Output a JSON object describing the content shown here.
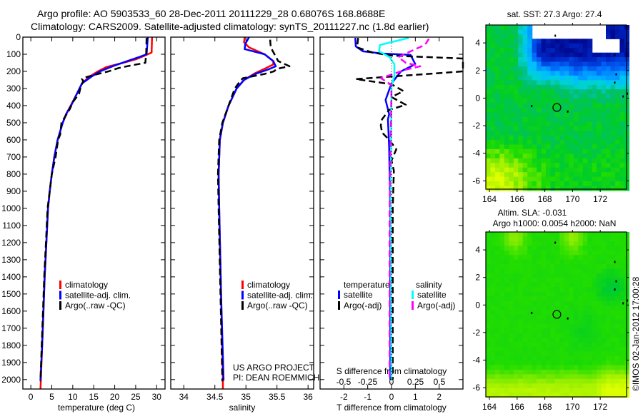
{
  "header": {
    "title_line1": "Argo profile: AO 5903533_60 28-Dec-2011 20111229_28 0.68076S 168.8688E",
    "title_line2": "Climatology: CARS2009. Satellite-adjusted climatology: synTS_20111227.nc (1.8d earlier)"
  },
  "credits": {
    "project": "US ARGO PROJECT",
    "pi": "PI: DEAN ROEMMICH",
    "stamp": "©IMOS 02-Jan-2012 17:00:28"
  },
  "colors": {
    "climatology": "#ff0000",
    "satellite": "#0000ff",
    "argo": "#000000",
    "sal_satellite": "#00ffff",
    "sal_argo": "#ff00ff"
  },
  "chart_data": [
    {
      "type": "line",
      "id": "temperature",
      "xlabel": "temperature (deg C)",
      "ylabel": "",
      "xlim": [
        -1.9,
        32
      ],
      "ylim": [
        2055,
        0
      ],
      "xticks": [
        "0",
        "5",
        "10",
        "15",
        "20",
        "25",
        "30"
      ],
      "yticks": [
        "0",
        "100",
        "200",
        "300",
        "400",
        "500",
        "600",
        "700",
        "800",
        "900",
        "1000",
        "1100",
        "1200",
        "1300",
        "1400",
        "1500",
        "1600",
        "1700",
        "1800",
        "1900",
        "2000"
      ],
      "legend": [
        "climatology",
        "satellite-adj. clim.",
        "Argo(..raw -QC)"
      ],
      "series": [
        {
          "name": "climatology",
          "color": "#ff0000",
          "points": [
            [
              0,
              28.9
            ],
            [
              90,
              28.8
            ],
            [
              110,
              27
            ],
            [
              130,
              25
            ],
            [
              150,
              22
            ],
            [
              175,
              18
            ],
            [
              200,
              16
            ],
            [
              230,
              14
            ],
            [
              270,
              12.2
            ],
            [
              330,
              11
            ],
            [
              400,
              9.5
            ],
            [
              450,
              8.4
            ],
            [
              500,
              7.6
            ],
            [
              600,
              6.4
            ],
            [
              700,
              5.6
            ],
            [
              800,
              5
            ],
            [
              900,
              4.5
            ],
            [
              1000,
              4.1
            ],
            [
              1200,
              3.7
            ],
            [
              1400,
              3.3
            ],
            [
              1600,
              3
            ],
            [
              1800,
              2.7
            ],
            [
              2000,
              2.4
            ],
            [
              2055,
              2.3
            ]
          ]
        },
        {
          "name": "satellite-adj. clim.",
          "color": "#0000ff",
          "points": [
            [
              0,
              27.9
            ],
            [
              100,
              27.6
            ],
            [
              115,
              26
            ],
            [
              140,
              23
            ],
            [
              170,
              19.5
            ],
            [
              200,
              16.5
            ],
            [
              230,
              14.5
            ],
            [
              270,
              12.2
            ],
            [
              330,
              11
            ],
            [
              400,
              9.6
            ],
            [
              450,
              8.4
            ],
            [
              500,
              7.6
            ],
            [
              600,
              6.4
            ],
            [
              700,
              5.6
            ],
            [
              800,
              5
            ],
            [
              900,
              4.5
            ],
            [
              1000,
              4.1
            ],
            [
              1200,
              3.7
            ],
            [
              1400,
              3.3
            ],
            [
              1600,
              3
            ],
            [
              1800,
              2.7
            ],
            [
              2000,
              2.3
            ],
            [
              2005,
              2.2
            ]
          ]
        },
        {
          "name": "Argo(..raw -QC)",
          "color": "#000000",
          "points": [
            [
              5,
              27.6
            ],
            [
              100,
              27.5
            ],
            [
              150,
              27.3
            ],
            [
              165,
              24
            ],
            [
              180,
              21
            ],
            [
              200,
              18.5
            ],
            [
              215,
              16
            ],
            [
              235,
              13
            ],
            [
              245,
              12.2
            ],
            [
              255,
              12.5
            ],
            [
              300,
              11.8
            ],
            [
              330,
              11.5
            ],
            [
              380,
              10
            ],
            [
              420,
              9.3
            ],
            [
              480,
              7.8
            ],
            [
              500,
              7.3
            ],
            [
              570,
              7
            ],
            [
              600,
              6.5
            ],
            [
              700,
              5.9
            ],
            [
              800,
              5
            ],
            [
              900,
              4.5
            ],
            [
              1000,
              4
            ],
            [
              1200,
              3.6
            ],
            [
              1400,
              3.2
            ],
            [
              1600,
              2.9
            ],
            [
              1800,
              2.6
            ],
            [
              2000,
              2.3
            ],
            [
              2010,
              2.3
            ]
          ]
        }
      ]
    },
    {
      "type": "line",
      "id": "salinity",
      "xlabel": "salinity",
      "xlim": [
        33.79,
        36.09
      ],
      "ylim": [
        2055,
        0
      ],
      "xticks": [
        "34",
        "34.5",
        "35",
        "35.5",
        "36"
      ],
      "legend": [
        "climatology",
        "satellite-adj. clim.",
        "Argo(..raw -QC)"
      ],
      "series": [
        {
          "name": "climatology",
          "color": "#ff0000",
          "points": [
            [
              0,
              34.98
            ],
            [
              30,
              34.97
            ],
            [
              60,
              35.05
            ],
            [
              100,
              35.3
            ],
            [
              140,
              35.44
            ],
            [
              160,
              35.44
            ],
            [
              185,
              35.3
            ],
            [
              210,
              35.15
            ],
            [
              250,
              34.97
            ],
            [
              300,
              34.85
            ],
            [
              400,
              34.72
            ],
            [
              500,
              34.63
            ],
            [
              600,
              34.58
            ],
            [
              800,
              34.56
            ],
            [
              1000,
              34.57
            ],
            [
              1500,
              34.6
            ],
            [
              2000,
              34.63
            ],
            [
              2055,
              34.63
            ]
          ]
        },
        {
          "name": "satellite-adj. clim.",
          "color": "#0000ff",
          "points": [
            [
              0,
              35.05
            ],
            [
              40,
              34.99
            ],
            [
              70,
              34.98
            ],
            [
              100,
              35.3
            ],
            [
              140,
              35.44
            ],
            [
              170,
              35.48
            ],
            [
              190,
              35.35
            ],
            [
              215,
              35.15
            ],
            [
              250,
              34.97
            ],
            [
              300,
              34.85
            ],
            [
              400,
              34.72
            ],
            [
              500,
              34.63
            ],
            [
              600,
              34.58
            ],
            [
              800,
              34.56
            ],
            [
              1000,
              34.57
            ],
            [
              1500,
              34.6
            ],
            [
              2000,
              34.64
            ],
            [
              2005,
              34.64
            ]
          ]
        },
        {
          "name": "Argo(..raw -QC)",
          "color": "#000000",
          "points": [
            [
              15,
              35.39
            ],
            [
              60,
              35.4
            ],
            [
              100,
              35.46
            ],
            [
              140,
              35.52
            ],
            [
              170,
              35.7
            ],
            [
              185,
              35.5
            ],
            [
              200,
              35.45
            ],
            [
              215,
              35.3
            ],
            [
              240,
              34.95
            ],
            [
              260,
              34.9
            ],
            [
              300,
              34.82
            ],
            [
              400,
              34.72
            ],
            [
              500,
              34.62
            ],
            [
              600,
              34.57
            ],
            [
              800,
              34.55
            ],
            [
              1000,
              34.56
            ],
            [
              1500,
              34.59
            ],
            [
              2000,
              34.62
            ],
            [
              2010,
              34.62
            ]
          ]
        }
      ]
    },
    {
      "type": "line",
      "id": "difference",
      "xlabel": "T difference from climatology",
      "x2label": "S difference from climatology",
      "xlim": [
        -3,
        3
      ],
      "x2lim": [
        -0.746,
        0.746
      ],
      "ylim": [
        2055,
        0
      ],
      "xticks": [
        "-2",
        "-1",
        "0",
        "1",
        "2"
      ],
      "x2ticks": [
        "-0.5",
        "-0.25",
        "0",
        "0.25",
        "0.5"
      ],
      "legend_headers": [
        "temperature",
        "salinity"
      ],
      "legend": [
        "satellite",
        "Argo(-adj)",
        "satellite",
        "Argo(-adj)"
      ],
      "series": [
        {
          "name": "T satellite",
          "axis": "T",
          "color": "#0000ff",
          "points": [
            [
              4,
              -1.52
            ],
            [
              54,
              -1.5
            ],
            [
              83,
              -1.2
            ],
            [
              96,
              -0.4
            ],
            [
              104,
              0.8
            ],
            [
              158,
              1.0
            ],
            [
              200,
              0.4
            ],
            [
              270,
              0
            ],
            [
              367,
              -0.25
            ],
            [
              450,
              -0.1
            ],
            [
              480,
              -0.15
            ],
            [
              645,
              -0.1
            ],
            [
              1020,
              -0.05
            ],
            [
              2000,
              -0.05
            ]
          ]
        },
        {
          "name": "T Argo(-adj)",
          "axis": "T",
          "color": "#000000",
          "points": [
            [
              5,
              -1.4
            ],
            [
              60,
              -1.45
            ],
            [
              90,
              -0.8
            ],
            [
              108,
              0
            ],
            [
              125,
              3
            ],
            [
              200,
              3
            ],
            [
              245,
              -1.5
            ],
            [
              275,
              0
            ],
            [
              315,
              0.5
            ],
            [
              350,
              0
            ],
            [
              395,
              0.6
            ],
            [
              425,
              -0.1
            ],
            [
              480,
              -0.4
            ],
            [
              515,
              -0.45
            ],
            [
              557,
              -0.4
            ],
            [
              600,
              -0.1
            ],
            [
              655,
              0.2
            ],
            [
              720,
              0
            ],
            [
              780,
              0.1
            ],
            [
              1000,
              0.05
            ],
            [
              2000,
              0.05
            ]
          ]
        },
        {
          "name": "S satellite",
          "axis": "S",
          "color": "#00ffff",
          "points": [
            [
              4,
              0.18
            ],
            [
              46,
              -0.12
            ],
            [
              83,
              -0.13
            ],
            [
              117,
              -0.02
            ],
            [
              158,
              0.03
            ],
            [
              228,
              0.03
            ],
            [
              283,
              0
            ],
            [
              1000,
              -0.01
            ],
            [
              2000,
              0.0
            ]
          ]
        },
        {
          "name": "S Argo(-adj)",
          "axis": "S",
          "color": "#ff00ff",
          "points": [
            [
              10,
              0.39
            ],
            [
              45,
              0.35
            ],
            [
              83,
              0.2
            ],
            [
              117,
              0.07
            ],
            [
              150,
              0.15
            ],
            [
              170,
              0.3
            ],
            [
              190,
              0.15
            ],
            [
              228,
              -0.05
            ],
            [
              240,
              -0.11
            ],
            [
              280,
              0
            ],
            [
              1000,
              -0.02
            ],
            [
              2000,
              -0.02
            ]
          ]
        }
      ]
    },
    {
      "type": "heatmap",
      "id": "sst_map",
      "title": "sat. SST: 27.3 Argo: 27.4",
      "xlim": [
        163.74,
        173.9
      ],
      "ylim": [
        -6.6,
        5.3
      ],
      "xticks": [
        "164",
        "166",
        "168",
        "170",
        "172"
      ],
      "yticks": [
        "4",
        "2",
        "0",
        "-2",
        "-4",
        "-6"
      ],
      "argo_position": {
        "lon": 168.8688,
        "lat": -0.68076
      }
    },
    {
      "type": "heatmap",
      "id": "sla_map",
      "title": "Altim. SLA: -0.031",
      "subtitle": "Argo h1000: 0.0054 h2000: NaN",
      "xlim": [
        163.74,
        173.9
      ],
      "ylim": [
        -6.67,
        5.3
      ],
      "xticks": [
        "164",
        "166",
        "168",
        "170",
        "172"
      ],
      "yticks": [
        "4",
        "2",
        "0",
        "-2",
        "-4",
        "-6"
      ],
      "argo_position": {
        "lon": 168.8688,
        "lat": -0.68076
      }
    }
  ]
}
